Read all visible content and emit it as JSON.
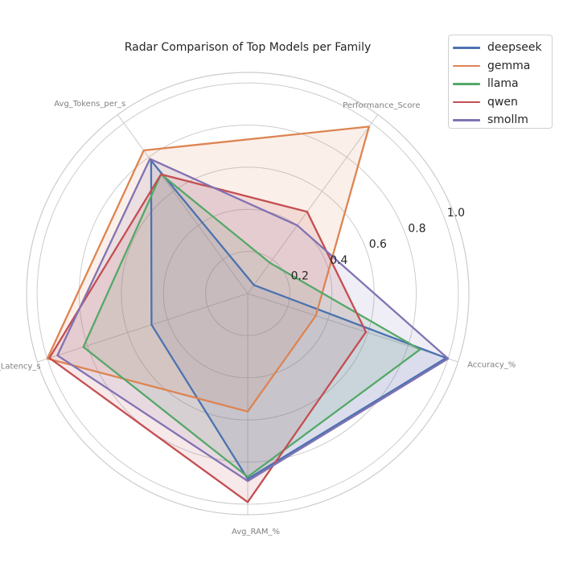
{
  "chart_data": {
    "type": "radar",
    "title": "Radar Comparison of Top Models per Family",
    "axes": [
      "Accuracy_%",
      "Performance_Score",
      "Avg_Tokens_per_s",
      "Avg_Latency_s",
      "Avg_RAM_%"
    ],
    "radial_ticks": [
      "0.2",
      "0.4",
      "0.6",
      "0.8",
      "1.0"
    ],
    "rlim": [
      0,
      1.05
    ],
    "grid": true,
    "legend_position": "top-right",
    "series": [
      {
        "name": "deepseek",
        "color": "#4c72b0",
        "values": [
          0.99,
          0.05,
          0.78,
          0.48,
          0.88
        ]
      },
      {
        "name": "gemma",
        "color": "#dd8452",
        "values": [
          0.34,
          0.98,
          0.84,
          1.0,
          0.56
        ]
      },
      {
        "name": "llama",
        "color": "#55a868",
        "values": [
          0.86,
          0.18,
          0.7,
          0.82,
          0.87
        ]
      },
      {
        "name": "qwen",
        "color": "#c44e52",
        "values": [
          0.59,
          0.48,
          0.7,
          0.99,
          0.99
        ]
      },
      {
        "name": "smollm",
        "color": "#8172b3",
        "values": [
          1.0,
          0.4,
          0.79,
          0.95,
          0.89
        ]
      }
    ]
  }
}
